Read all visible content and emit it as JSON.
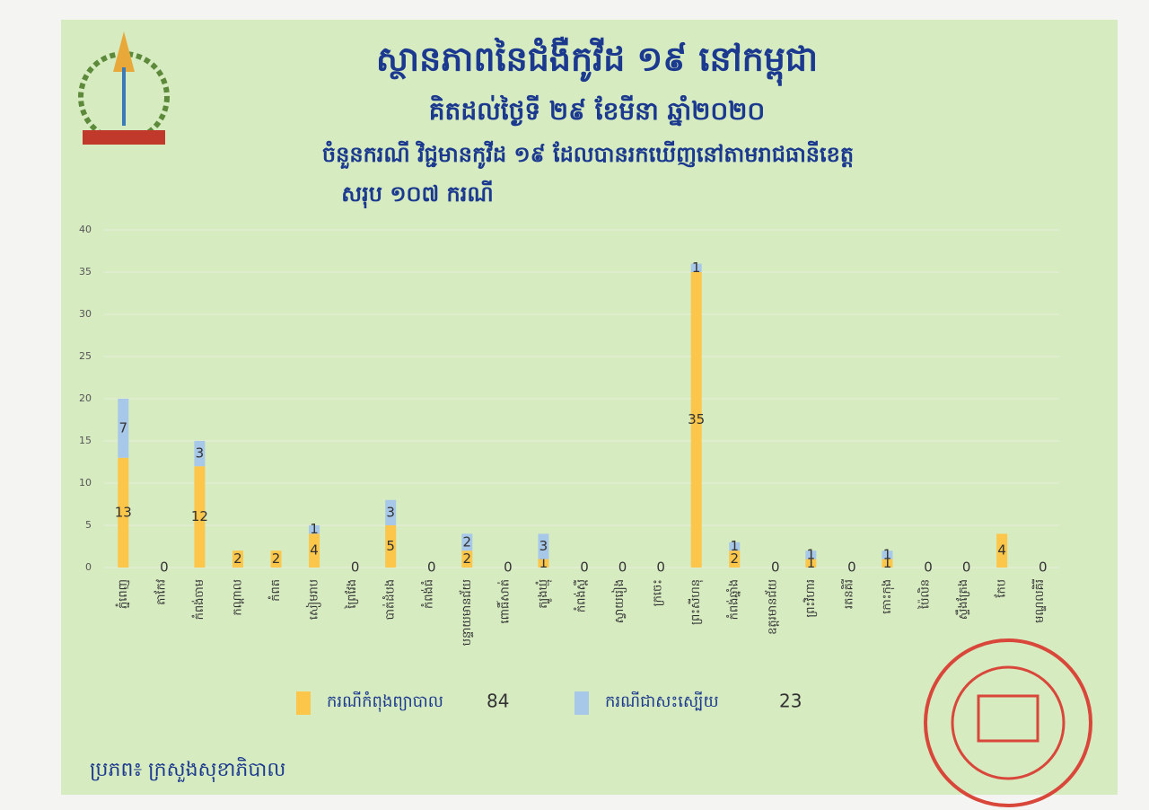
{
  "chart_data": {
    "type": "stacked_bar",
    "title": "ស្ថានភាពនៃជំងឺកូវីដ ១៩ នៅកម្ពុជា",
    "subtitle": "គិតដល់ថ្ងៃទី ២៩ ខែមីនា ឆ្នាំ២០២០",
    "description": "ចំនួនករណី វិជ្ជមានកូវីដ ១៩ ដែលបានរកឃើញនៅតាមរាជធានីខេត្ត",
    "total_text": "សរុប ១០៧ ករណី",
    "source": "ប្រភព៖ ក្រសួងសុខាភិបាល",
    "categories": [
      "ភ្នំពេញ",
      "តាកែវ",
      "កំពង់ចាម",
      "កណ្តាល",
      "កំពត",
      "សៀមរាប",
      "ព្រៃវែង",
      "បាត់ដំបង",
      "កំពង់ធំ",
      "បន្ទាយមានជ័យ",
      "ពោធិ៍សាត់",
      "ត្បូងឃ្មុំ",
      "កំពង់ស្ពឺ",
      "ស្វាយរៀង",
      "ក្រចេះ",
      "ព្រះសីហនុ",
      "កំពង់ឆ្នាំង",
      "ឧត្តរមានជ័យ",
      "ព្រះវិហារ",
      "រតនគិរី",
      "កោះកុង",
      "ប៉ៃលិន",
      "ស្ទឹងត្រែង",
      "កែប",
      "មណ្ឌលគិរី"
    ],
    "series": [
      {
        "name": "ករណីកំពុងព្យាបាល",
        "total": 84,
        "color": "#fcc64a",
        "values": [
          13,
          0,
          12,
          2,
          2,
          4,
          0,
          5,
          0,
          2,
          0,
          1,
          0,
          0,
          0,
          35,
          2,
          0,
          1,
          0,
          1,
          0,
          0,
          4,
          0
        ]
      },
      {
        "name": "ករណីជាសះស្បើយ",
        "total": 23,
        "color": "#a7c8e8",
        "values": [
          7,
          0,
          3,
          0,
          0,
          1,
          0,
          3,
          0,
          2,
          0,
          3,
          0,
          0,
          0,
          1,
          1,
          0,
          1,
          0,
          1,
          0,
          0,
          0,
          0
        ]
      }
    ],
    "ylim": [
      0,
      40
    ],
    "yticks": [
      0,
      5,
      10,
      15,
      20,
      25,
      30,
      35,
      40
    ],
    "grid": true
  }
}
